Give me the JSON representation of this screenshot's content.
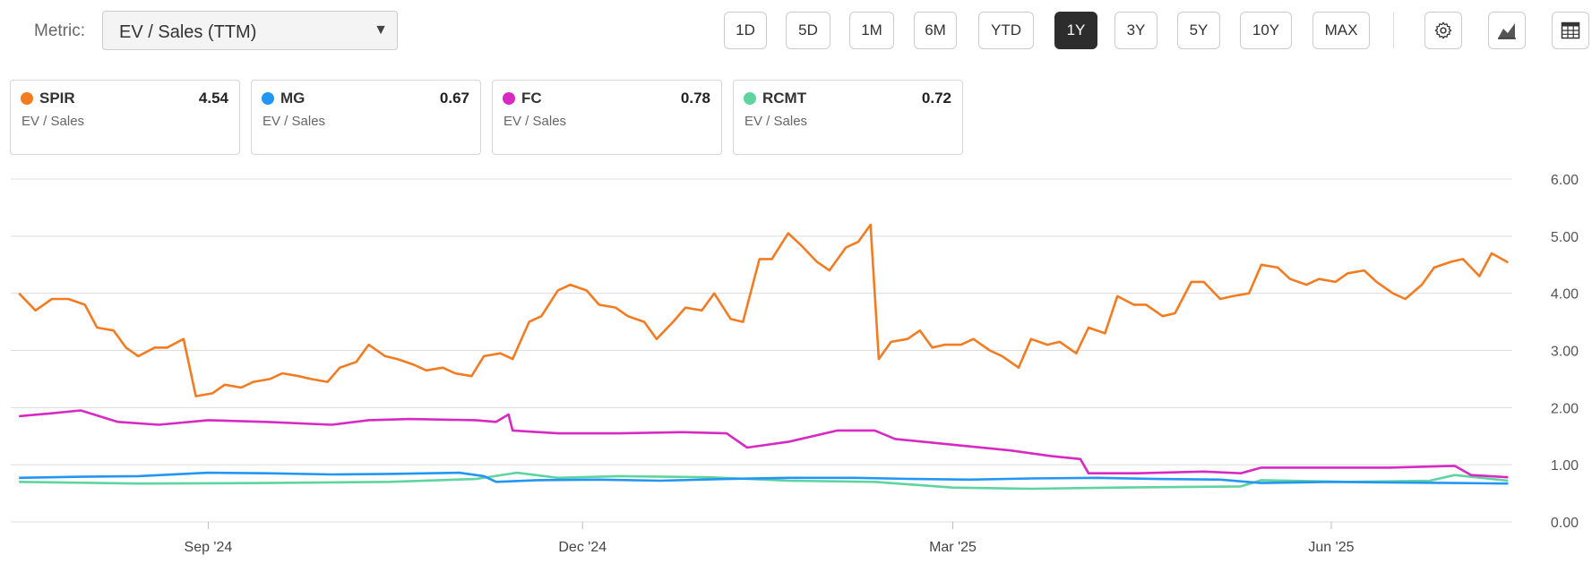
{
  "metric": {
    "label": "Metric:",
    "value": "EV / Sales (TTM)"
  },
  "ranges": [
    {
      "label": "1D",
      "active": false
    },
    {
      "label": "5D",
      "active": false
    },
    {
      "label": "1M",
      "active": false
    },
    {
      "label": "6M",
      "active": false
    },
    {
      "label": "YTD",
      "active": false
    },
    {
      "label": "1Y",
      "active": true
    },
    {
      "label": "3Y",
      "active": false
    },
    {
      "label": "5Y",
      "active": false
    },
    {
      "label": "10Y",
      "active": false
    },
    {
      "label": "MAX",
      "active": false
    }
  ],
  "tools": [
    {
      "icon": "gear-icon"
    },
    {
      "icon": "area-chart-icon"
    },
    {
      "icon": "table-icon"
    }
  ],
  "cards": [
    {
      "ticker": "SPIR",
      "value": "4.54",
      "sub": "EV / Sales",
      "color": "#f47b20"
    },
    {
      "ticker": "MG",
      "value": "0.67",
      "sub": "EV / Sales",
      "color": "#2196f3"
    },
    {
      "ticker": "FC",
      "value": "0.78",
      "sub": "EV / Sales",
      "color": "#d62ac2"
    },
    {
      "ticker": "RCMT",
      "value": "0.72",
      "sub": "EV / Sales",
      "color": "#5fd3a0"
    }
  ],
  "chart_data": {
    "type": "line",
    "ylim": [
      0,
      6
    ],
    "y_ticks": [
      "0.00",
      "1.00",
      "2.00",
      "3.00",
      "4.00",
      "5.00",
      "6.00"
    ],
    "x_range": [
      "2024-07-15",
      "2025-07-15"
    ],
    "x_ticks": [
      {
        "label": "Sep '24",
        "date": "2024-09-01"
      },
      {
        "label": "Dec '24",
        "date": "2024-12-01"
      },
      {
        "label": "Mar '25",
        "date": "2025-03-01"
      },
      {
        "label": "Jun '25",
        "date": "2025-06-01"
      }
    ],
    "grid": true,
    "series": [
      {
        "name": "SPIR",
        "color": "#f47b20",
        "points": [
          [
            "2024-07-17",
            4.0
          ],
          [
            "2024-07-21",
            3.7
          ],
          [
            "2024-07-25",
            3.9
          ],
          [
            "2024-07-29",
            3.9
          ],
          [
            "2024-08-02",
            3.8
          ],
          [
            "2024-08-05",
            3.4
          ],
          [
            "2024-08-09",
            3.35
          ],
          [
            "2024-08-12",
            3.05
          ],
          [
            "2024-08-15",
            2.9
          ],
          [
            "2024-08-19",
            3.05
          ],
          [
            "2024-08-22",
            3.05
          ],
          [
            "2024-08-26",
            3.2
          ],
          [
            "2024-08-29",
            2.2
          ],
          [
            "2024-09-02",
            2.25
          ],
          [
            "2024-09-05",
            2.4
          ],
          [
            "2024-09-09",
            2.35
          ],
          [
            "2024-09-12",
            2.45
          ],
          [
            "2024-09-16",
            2.5
          ],
          [
            "2024-09-19",
            2.6
          ],
          [
            "2024-09-23",
            2.55
          ],
          [
            "2024-09-26",
            2.5
          ],
          [
            "2024-09-30",
            2.45
          ],
          [
            "2024-10-03",
            2.7
          ],
          [
            "2024-10-07",
            2.8
          ],
          [
            "2024-10-10",
            3.1
          ],
          [
            "2024-10-14",
            2.9
          ],
          [
            "2024-10-17",
            2.85
          ],
          [
            "2024-10-21",
            2.75
          ],
          [
            "2024-10-24",
            2.65
          ],
          [
            "2024-10-28",
            2.7
          ],
          [
            "2024-10-31",
            2.6
          ],
          [
            "2024-11-04",
            2.55
          ],
          [
            "2024-11-07",
            2.9
          ],
          [
            "2024-11-11",
            2.95
          ],
          [
            "2024-11-14",
            2.85
          ],
          [
            "2024-11-18",
            3.5
          ],
          [
            "2024-11-21",
            3.6
          ],
          [
            "2024-11-25",
            4.05
          ],
          [
            "2024-11-28",
            4.15
          ],
          [
            "2024-12-02",
            4.05
          ],
          [
            "2024-12-05",
            3.8
          ],
          [
            "2024-12-09",
            3.75
          ],
          [
            "2024-12-12",
            3.6
          ],
          [
            "2024-12-16",
            3.5
          ],
          [
            "2024-12-19",
            3.2
          ],
          [
            "2024-12-23",
            3.5
          ],
          [
            "2024-12-26",
            3.75
          ],
          [
            "2024-12-30",
            3.7
          ],
          [
            "2025-01-02",
            4.0
          ],
          [
            "2025-01-06",
            3.55
          ],
          [
            "2025-01-09",
            3.5
          ],
          [
            "2025-01-13",
            4.6
          ],
          [
            "2025-01-16",
            4.6
          ],
          [
            "2025-01-20",
            5.05
          ],
          [
            "2025-01-23",
            4.85
          ],
          [
            "2025-01-27",
            4.55
          ],
          [
            "2025-01-30",
            4.4
          ],
          [
            "2025-02-03",
            4.8
          ],
          [
            "2025-02-06",
            4.9
          ],
          [
            "2025-02-09",
            5.2
          ],
          [
            "2025-02-11",
            2.85
          ],
          [
            "2025-02-14",
            3.15
          ],
          [
            "2025-02-18",
            3.2
          ],
          [
            "2025-02-21",
            3.35
          ],
          [
            "2025-02-24",
            3.05
          ],
          [
            "2025-02-27",
            3.1
          ],
          [
            "2025-03-03",
            3.1
          ],
          [
            "2025-03-06",
            3.2
          ],
          [
            "2025-03-10",
            3.0
          ],
          [
            "2025-03-13",
            2.9
          ],
          [
            "2025-03-17",
            2.7
          ],
          [
            "2025-03-20",
            3.2
          ],
          [
            "2025-03-24",
            3.1
          ],
          [
            "2025-03-27",
            3.15
          ],
          [
            "2025-03-31",
            2.95
          ],
          [
            "2025-04-03",
            3.4
          ],
          [
            "2025-04-07",
            3.3
          ],
          [
            "2025-04-10",
            3.95
          ],
          [
            "2025-04-14",
            3.8
          ],
          [
            "2025-04-17",
            3.8
          ],
          [
            "2025-04-21",
            3.6
          ],
          [
            "2025-04-24",
            3.65
          ],
          [
            "2025-04-28",
            4.2
          ],
          [
            "2025-05-01",
            4.2
          ],
          [
            "2025-05-05",
            3.9
          ],
          [
            "2025-05-08",
            3.95
          ],
          [
            "2025-05-12",
            4.0
          ],
          [
            "2025-05-15",
            4.5
          ],
          [
            "2025-05-19",
            4.45
          ],
          [
            "2025-05-22",
            4.25
          ],
          [
            "2025-05-26",
            4.15
          ],
          [
            "2025-05-29",
            4.25
          ],
          [
            "2025-06-02",
            4.2
          ],
          [
            "2025-06-05",
            4.35
          ],
          [
            "2025-06-09",
            4.4
          ],
          [
            "2025-06-12",
            4.2
          ],
          [
            "2025-06-16",
            4.0
          ],
          [
            "2025-06-19",
            3.9
          ],
          [
            "2025-06-23",
            4.15
          ],
          [
            "2025-06-26",
            4.45
          ],
          [
            "2025-06-30",
            4.55
          ],
          [
            "2025-07-03",
            4.6
          ],
          [
            "2025-07-07",
            4.3
          ],
          [
            "2025-07-10",
            4.7
          ],
          [
            "2025-07-14",
            4.54
          ]
        ]
      },
      {
        "name": "MG",
        "color": "#2196f3",
        "points": [
          [
            "2024-07-17",
            0.77
          ],
          [
            "2024-08-01",
            0.79
          ],
          [
            "2024-08-15",
            0.8
          ],
          [
            "2024-09-01",
            0.86
          ],
          [
            "2024-09-15",
            0.85
          ],
          [
            "2024-10-01",
            0.83
          ],
          [
            "2024-10-15",
            0.84
          ],
          [
            "2024-11-01",
            0.86
          ],
          [
            "2024-11-07",
            0.8
          ],
          [
            "2024-11-10",
            0.7
          ],
          [
            "2024-11-20",
            0.73
          ],
          [
            "2024-12-05",
            0.74
          ],
          [
            "2024-12-20",
            0.72
          ],
          [
            "2025-01-05",
            0.75
          ],
          [
            "2025-01-20",
            0.77
          ],
          [
            "2025-02-05",
            0.77
          ],
          [
            "2025-02-20",
            0.75
          ],
          [
            "2025-03-05",
            0.74
          ],
          [
            "2025-03-20",
            0.76
          ],
          [
            "2025-04-05",
            0.77
          ],
          [
            "2025-04-20",
            0.75
          ],
          [
            "2025-05-05",
            0.74
          ],
          [
            "2025-05-15",
            0.68
          ],
          [
            "2025-06-01",
            0.7
          ],
          [
            "2025-06-15",
            0.69
          ],
          [
            "2025-07-01",
            0.68
          ],
          [
            "2025-07-14",
            0.67
          ]
        ]
      },
      {
        "name": "FC",
        "color": "#d62ac2",
        "points": [
          [
            "2024-07-17",
            1.85
          ],
          [
            "2024-07-25",
            1.9
          ],
          [
            "2024-08-01",
            1.95
          ],
          [
            "2024-08-10",
            1.75
          ],
          [
            "2024-08-20",
            1.7
          ],
          [
            "2024-09-01",
            1.78
          ],
          [
            "2024-09-15",
            1.75
          ],
          [
            "2024-10-01",
            1.7
          ],
          [
            "2024-10-10",
            1.78
          ],
          [
            "2024-10-20",
            1.8
          ],
          [
            "2024-11-05",
            1.78
          ],
          [
            "2024-11-10",
            1.75
          ],
          [
            "2024-11-13",
            1.88
          ],
          [
            "2024-11-14",
            1.6
          ],
          [
            "2024-11-25",
            1.55
          ],
          [
            "2024-12-10",
            1.55
          ],
          [
            "2024-12-25",
            1.57
          ],
          [
            "2025-01-05",
            1.55
          ],
          [
            "2025-01-10",
            1.3
          ],
          [
            "2025-01-20",
            1.4
          ],
          [
            "2025-02-01",
            1.6
          ],
          [
            "2025-02-10",
            1.6
          ],
          [
            "2025-02-15",
            1.45
          ],
          [
            "2025-03-01",
            1.35
          ],
          [
            "2025-03-15",
            1.25
          ],
          [
            "2025-03-25",
            1.15
          ],
          [
            "2025-04-01",
            1.1
          ],
          [
            "2025-04-03",
            0.85
          ],
          [
            "2025-04-15",
            0.85
          ],
          [
            "2025-05-01",
            0.88
          ],
          [
            "2025-05-10",
            0.85
          ],
          [
            "2025-05-15",
            0.95
          ],
          [
            "2025-06-01",
            0.95
          ],
          [
            "2025-06-15",
            0.95
          ],
          [
            "2025-07-01",
            0.98
          ],
          [
            "2025-07-05",
            0.82
          ],
          [
            "2025-07-14",
            0.78
          ]
        ]
      },
      {
        "name": "RCMT",
        "color": "#5fd3a0",
        "points": [
          [
            "2024-07-17",
            0.7
          ],
          [
            "2024-08-15",
            0.67
          ],
          [
            "2024-09-15",
            0.68
          ],
          [
            "2024-10-15",
            0.7
          ],
          [
            "2024-11-05",
            0.75
          ],
          [
            "2024-11-15",
            0.86
          ],
          [
            "2024-11-25",
            0.77
          ],
          [
            "2024-12-10",
            0.8
          ],
          [
            "2025-01-01",
            0.78
          ],
          [
            "2025-01-20",
            0.72
          ],
          [
            "2025-02-10",
            0.7
          ],
          [
            "2025-03-01",
            0.6
          ],
          [
            "2025-03-20",
            0.58
          ],
          [
            "2025-04-10",
            0.6
          ],
          [
            "2025-05-10",
            0.62
          ],
          [
            "2025-05-15",
            0.73
          ],
          [
            "2025-06-05",
            0.7
          ],
          [
            "2025-06-25",
            0.72
          ],
          [
            "2025-07-01",
            0.82
          ],
          [
            "2025-07-14",
            0.72
          ]
        ]
      }
    ]
  }
}
